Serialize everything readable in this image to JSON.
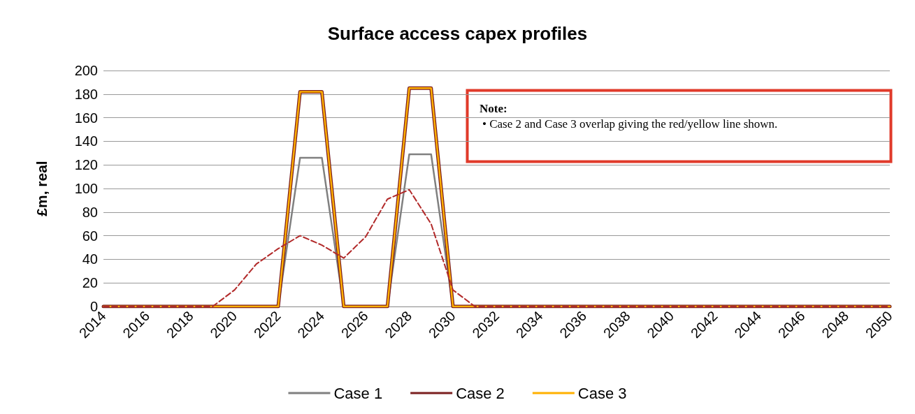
{
  "chart_data": {
    "type": "line",
    "title": "Surface access capex profiles",
    "ylabel": "£m, real",
    "x": [
      2014,
      2015,
      2016,
      2017,
      2018,
      2019,
      2020,
      2021,
      2022,
      2023,
      2024,
      2025,
      2026,
      2027,
      2028,
      2029,
      2030,
      2031,
      2032,
      2033,
      2034,
      2035,
      2036,
      2037,
      2038,
      2039,
      2040,
      2041,
      2042,
      2043,
      2044,
      2045,
      2046,
      2047,
      2048,
      2049,
      2050
    ],
    "series": [
      {
        "name": "Case 1",
        "color": "#808080",
        "values": [
          null,
          null,
          null,
          null,
          null,
          null,
          null,
          null,
          0,
          126,
          126,
          0,
          null,
          0,
          129,
          129,
          0,
          null,
          null,
          null,
          null,
          null,
          null,
          null,
          null,
          null,
          null,
          null,
          null,
          null,
          null,
          null,
          null,
          null,
          null,
          null,
          null
        ]
      },
      {
        "name": "Case 2",
        "color": "#7b1f1f",
        "values": [
          0,
          0,
          0,
          0,
          0,
          0,
          0,
          0,
          0,
          182,
          182,
          0,
          0,
          0,
          185,
          185,
          0,
          0,
          0,
          0,
          0,
          0,
          0,
          0,
          0,
          0,
          0,
          0,
          0,
          0,
          0,
          0,
          0,
          0,
          0,
          0,
          0
        ]
      },
      {
        "name": "Case 3",
        "color": "#ffb000",
        "values": [
          0,
          0,
          0,
          0,
          0,
          0,
          0,
          0,
          0,
          182,
          182,
          0,
          0,
          0,
          185,
          185,
          0,
          0,
          0,
          0,
          0,
          0,
          0,
          0,
          0,
          0,
          0,
          0,
          0,
          0,
          0,
          0,
          0,
          0,
          0,
          0,
          0
        ]
      },
      {
        "color": "#b22a2a",
        "line_style": "dashed",
        "values": [
          0,
          0,
          0,
          0,
          0,
          0,
          14,
          36,
          49,
          60,
          52,
          41,
          59,
          91,
          99,
          70,
          14,
          0,
          0,
          0,
          0,
          0,
          0,
          0,
          0,
          0,
          0,
          0,
          0,
          0,
          0,
          0,
          0,
          0,
          0,
          0,
          0
        ]
      }
    ],
    "xlim": [
      2014,
      2050
    ],
    "xticks": [
      2014,
      2016,
      2018,
      2020,
      2022,
      2024,
      2026,
      2028,
      2030,
      2032,
      2034,
      2036,
      2038,
      2040,
      2042,
      2044,
      2046,
      2048,
      2050
    ],
    "ylim": [
      0,
      200
    ],
    "yticks": [
      0,
      20,
      40,
      60,
      80,
      100,
      120,
      140,
      160,
      180,
      200
    ],
    "grid": "y",
    "legend": "bottom",
    "marker": "none",
    "annotations": [
      "Note:",
      "• Case 2 and Case 3 overlap giving the red/yellow line shown."
    ]
  }
}
